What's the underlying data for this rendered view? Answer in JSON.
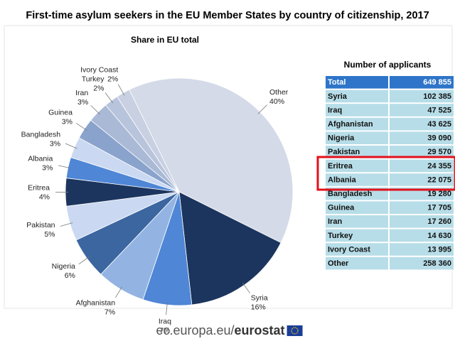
{
  "chart_data": {
    "type": "pie",
    "title": "First-time asylum seekers in the EU Member States by country of citizenship, 2017",
    "subtitle": "Share in EU total",
    "categories": [
      "Other",
      "Syria",
      "Iraq",
      "Afghanistan",
      "Nigeria",
      "Pakistan",
      "Eritrea",
      "Albania",
      "Bangladesh",
      "Guinea",
      "Iran",
      "Turkey",
      "Ivory Coast"
    ],
    "values": [
      40,
      16,
      7,
      7,
      6,
      5,
      4,
      3,
      3,
      3,
      3,
      2,
      2
    ],
    "value_labels": [
      "40%",
      "16%",
      "7%",
      "7%",
      "6%",
      "5%",
      "4%",
      "3%",
      "3%",
      "3%",
      "3%",
      "2%",
      "2%"
    ],
    "colors": [
      "#d4dae8",
      "#1c355e",
      "#4f86d6",
      "#93b4e3",
      "#3b66a0",
      "#cad9f1",
      "#1c355e",
      "#4f86d6",
      "#cad9f1",
      "#8aa3cc",
      "#a9b9d6",
      "#b8c4dc",
      "#c8d0e2"
    ],
    "table": {
      "title": "Number of applicants",
      "rows": [
        [
          "Total",
          "649 855"
        ],
        [
          "Syria",
          "102 385"
        ],
        [
          "Iraq",
          "47 525"
        ],
        [
          "Afghanistan",
          "43 625"
        ],
        [
          "Nigeria",
          "39 090"
        ],
        [
          "Pakistan",
          "29 570"
        ],
        [
          "Eritrea",
          "24 355"
        ],
        [
          "Albania",
          "22 075"
        ],
        [
          "Bangladesh",
          "19 280"
        ],
        [
          "Guinea",
          "17 705"
        ],
        [
          "Iran",
          "17 260"
        ],
        [
          "Turkey",
          "14 630"
        ],
        [
          "Ivory Coast",
          "13 995"
        ],
        [
          "Other",
          "258 360"
        ]
      ]
    },
    "footer": {
      "prefix": "ec.europa.eu/",
      "brand": "eurostat"
    }
  }
}
